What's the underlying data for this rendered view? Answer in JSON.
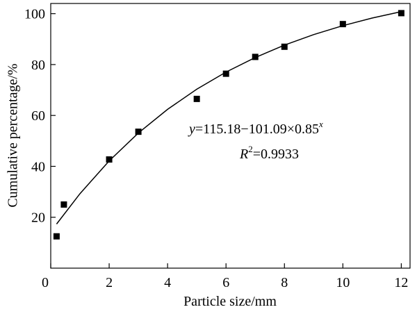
{
  "chart_data": {
    "type": "scatter",
    "x_label": "Particle size/mm",
    "y_label": "Cumulative percentage/%",
    "xlim": [
      0,
      12.3
    ],
    "ylim": [
      0,
      104
    ],
    "xticks": [
      0,
      2,
      4,
      6,
      8,
      10,
      12
    ],
    "yticks": [
      20,
      40,
      60,
      80,
      100
    ],
    "color": "#000000",
    "x": [
      0.2,
      0.45,
      2,
      3,
      5,
      6,
      7,
      8,
      10,
      12
    ],
    "values": [
      12.5,
      25,
      42.7,
      53.6,
      66.5,
      76.4,
      83,
      87,
      95.9,
      100.2
    ],
    "fit": {
      "x": [
        0.2,
        1,
        2,
        3,
        4,
        5,
        6,
        7,
        8,
        9,
        10,
        11,
        12
      ],
      "values": [
        17.33,
        29.25,
        42.14,
        53.1,
        62.41,
        70.33,
        77.05,
        82.77,
        87.63,
        91.77,
        95.28,
        98.26,
        100.8
      ]
    },
    "equation": [
      "y",
      "=115.18−101.09×0.85",
      "x"
    ],
    "r2": [
      "R",
      "2",
      "=0.9933"
    ]
  }
}
